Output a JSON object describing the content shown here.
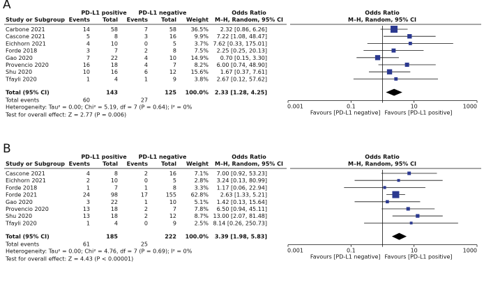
{
  "panels": [
    {
      "letter": "A",
      "header": {
        "group1": "PD-L1 positive",
        "group2": "PD-L1 negative",
        "odds_ratio": "Odds Ratio",
        "study_or_subgroup": "Study or Subgroup",
        "events": "Events",
        "total": "Total",
        "weight": "Weight",
        "method": "M–H, Random, 95% CI"
      },
      "studies": [
        {
          "name": "Carbone 2021",
          "e1": "14",
          "t1": "58",
          "e2": "7",
          "t2": "58",
          "weight": "36.5%",
          "or_text": "2.32 [0.86, 6.26]"
        },
        {
          "name": "Cascone 2021",
          "e1": "5",
          "t1": "8",
          "e2": "3",
          "t2": "16",
          "weight": "9.9%",
          "or_text": "7.22 [1.08, 48.47]"
        },
        {
          "name": "Eichhorn 2021",
          "e1": "4",
          "t1": "10",
          "e2": "0",
          "t2": "5",
          "weight": "3.7%",
          "or_text": "7.62 [0.33, 175.01]"
        },
        {
          "name": "Forde 2018",
          "e1": "3",
          "t1": "7",
          "e2": "2",
          "t2": "8",
          "weight": "7.5%",
          "or_text": "2.25 [0.25, 20.13]"
        },
        {
          "name": "Gao 2020",
          "e1": "7",
          "t1": "22",
          "e2": "4",
          "t2": "10",
          "weight": "14.9%",
          "or_text": "0.70 [0.15, 3.30]"
        },
        {
          "name": "Provencio 2020",
          "e1": "16",
          "t1": "18",
          "e2": "4",
          "t2": "7",
          "weight": "8.2%",
          "or_text": "6.00 [0.74, 48.90]"
        },
        {
          "name": "Shu 2020",
          "e1": "10",
          "t1": "16",
          "e2": "6",
          "t2": "12",
          "weight": "15.6%",
          "or_text": "1.67 [0.37, 7.61]"
        },
        {
          "name": "Tfayli 2020",
          "e1": "1",
          "t1": "4",
          "e2": "1",
          "t2": "9",
          "weight": "3.8%",
          "or_text": "2.67 [0.12, 57.62]"
        }
      ],
      "total": {
        "label": "Total (95% CI)",
        "t1": "143",
        "t2": "125",
        "weight": "100.0%",
        "or_text": "2.33 [1.28, 4.25]"
      },
      "total_events": {
        "label": "Total events",
        "e1": "60",
        "e2": "27"
      },
      "heterogeneity": "Heterogeneity: Tau² = 0.00; Chi² = 5.19, df = 7 (P = 0.64); I² = 0%",
      "overall_effect": "Test for overall effect: Z = 2.77 (P = 0.006)",
      "axis": {
        "ticks": [
          "0.001",
          "0.1",
          "10",
          "1000"
        ],
        "favours_left": "Favours [PD-L1 negative]",
        "favours_right": "Favours [PD-L1 positive]"
      }
    },
    {
      "letter": "B",
      "header": {
        "group1": "PD-L1 positive",
        "group2": "PD-L1 negative",
        "odds_ratio": "Odds Ratio",
        "study_or_subgroup": "Study or Subgroup",
        "events": "Events",
        "total": "Total",
        "weight": "Weight",
        "method": "M–H, Random, 95% CI"
      },
      "studies": [
        {
          "name": "Cascone 2021",
          "e1": "4",
          "t1": "8",
          "e2": "2",
          "t2": "16",
          "weight": "7.1%",
          "or_text": "7.00 [0.92, 53.23]"
        },
        {
          "name": "Eichhorn 2021",
          "e1": "2",
          "t1": "10",
          "e2": "0",
          "t2": "5",
          "weight": "2.8%",
          "or_text": "3.24 [0.13, 80.99]"
        },
        {
          "name": "Forde 2018",
          "e1": "1",
          "t1": "7",
          "e2": "1",
          "t2": "8",
          "weight": "3.3%",
          "or_text": "1.17 [0.06, 22.94]"
        },
        {
          "name": "Forde 2021",
          "e1": "24",
          "t1": "98",
          "e2": "17",
          "t2": "155",
          "weight": "62.8%",
          "or_text": "2.63 [1.33, 5.21]"
        },
        {
          "name": "Gao 2020",
          "e1": "3",
          "t1": "22",
          "e2": "1",
          "t2": "10",
          "weight": "5.1%",
          "or_text": "1.42 [0.13, 15.64]"
        },
        {
          "name": "Provencio 2020",
          "e1": "13",
          "t1": "18",
          "e2": "2",
          "t2": "7",
          "weight": "7.8%",
          "or_text": "6.50 [0.94, 45.11]"
        },
        {
          "name": "Shu 2020",
          "e1": "13",
          "t1": "18",
          "e2": "2",
          "t2": "12",
          "weight": "8.7%",
          "or_text": "13.00 [2.07, 81.48]"
        },
        {
          "name": "Tfayli 2020",
          "e1": "1",
          "t1": "4",
          "e2": "0",
          "t2": "9",
          "weight": "2.5%",
          "or_text": "8.14 [0.26, 250.73]"
        }
      ],
      "total": {
        "label": "Total (95% CI)",
        "t1": "185",
        "t2": "222",
        "weight": "100.0%",
        "or_text": "3.39 [1.98, 5.83]"
      },
      "total_events": {
        "label": "Total events",
        "e1": "61",
        "e2": "25"
      },
      "heterogeneity": "Heterogeneity: Tau² = 0.00; Chi² = 4.76, df = 7 (P = 0.69); I² = 0%",
      "overall_effect": "Test for overall effect: Z = 4.43 (P < 0.00001)",
      "axis": {
        "ticks": [
          "0.001",
          "0.1",
          "10",
          "1000"
        ],
        "favours_left": "Favours [PD-L1 negative]",
        "favours_right": "Favours [PD-L1 positive]"
      }
    }
  ],
  "colors": {
    "marker": "#2b3990",
    "line": "#111111",
    "text": "#111111"
  },
  "chart_data": [
    {
      "type": "forest",
      "title": "A",
      "scale": "log",
      "xlim": [
        0.001,
        1000
      ],
      "categories": [
        "Carbone 2021",
        "Cascone 2021",
        "Eichhorn 2021",
        "Forde 2018",
        "Gao 2020",
        "Provencio 2020",
        "Shu 2020",
        "Tfayli 2020"
      ],
      "or": [
        2.32,
        7.22,
        7.62,
        2.25,
        0.7,
        6.0,
        1.67,
        2.67
      ],
      "ci_low": [
        0.86,
        1.08,
        0.33,
        0.25,
        0.15,
        0.74,
        0.37,
        0.12
      ],
      "ci_high": [
        6.26,
        48.47,
        175.01,
        20.13,
        3.3,
        48.9,
        7.61,
        57.62
      ],
      "weights": [
        36.5,
        9.9,
        3.7,
        7.5,
        14.9,
        8.2,
        15.6,
        3.8
      ],
      "pooled": {
        "or": 2.33,
        "ci_low": 1.28,
        "ci_high": 4.25
      }
    },
    {
      "type": "forest",
      "title": "B",
      "scale": "log",
      "xlim": [
        0.001,
        1000
      ],
      "categories": [
        "Cascone 2021",
        "Eichhorn 2021",
        "Forde 2018",
        "Forde 2021",
        "Gao 2020",
        "Provencio 2020",
        "Shu 2020",
        "Tfayli 2020"
      ],
      "or": [
        7.0,
        3.24,
        1.17,
        2.63,
        1.42,
        6.5,
        13.0,
        8.14
      ],
      "ci_low": [
        0.92,
        0.13,
        0.06,
        1.33,
        0.13,
        0.94,
        2.07,
        0.26
      ],
      "ci_high": [
        53.23,
        80.99,
        22.94,
        5.21,
        15.64,
        45.11,
        81.48,
        250.73
      ],
      "weights": [
        7.1,
        2.8,
        3.3,
        62.8,
        5.1,
        7.8,
        8.7,
        2.5
      ],
      "pooled": {
        "or": 3.39,
        "ci_low": 1.98,
        "ci_high": 5.83
      }
    }
  ]
}
